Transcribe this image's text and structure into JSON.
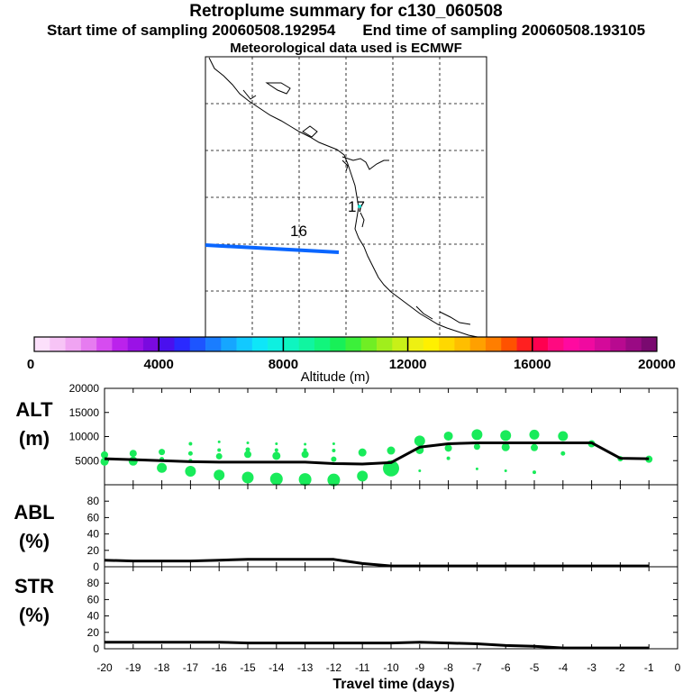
{
  "header": {
    "title": "Retroplume summary for c130_060508",
    "start_label": "Start time of sampling 20060508.192954",
    "end_label": "End time of sampling 20060508.193105",
    "met_label": "Meteorological data used is ECMWF"
  },
  "map": {
    "labels": [
      {
        "text": "16",
        "color": "#000000"
      },
      {
        "text": "17",
        "color": "#000000"
      }
    ],
    "track_color": "#0a66ff"
  },
  "colorbar": {
    "title": "Altitude (m)",
    "tick_labels": [
      "0",
      "4000",
      "8000",
      "12000",
      "16000",
      "20000"
    ],
    "colors": [
      "#fce0fb",
      "#f7c4f6",
      "#f0a4f2",
      "#e67cf0",
      "#d64cf0",
      "#bb22ec",
      "#9a12e6",
      "#7a0adf",
      "#4a10ee",
      "#2a2aff",
      "#1d55ff",
      "#1a7dff",
      "#16a6ff",
      "#12c9ff",
      "#0ee6f8",
      "#0ef0e0",
      "#0ef5c0",
      "#10f5a0",
      "#12f57c",
      "#18f058",
      "#3cf03a",
      "#70ee24",
      "#a0ee1c",
      "#c8f018",
      "#eef012",
      "#fff000",
      "#ffd800",
      "#ffbe00",
      "#ffa000",
      "#ff7e00",
      "#ff5200",
      "#ff2020",
      "#ff0050",
      "#ff0a80",
      "#ff0aa0",
      "#f00aa0",
      "#d40a9a",
      "#b80a90",
      "#9a0a84",
      "#7a0a70"
    ]
  },
  "chart_data": {
    "type": "line",
    "xlabel": "Travel time (days)",
    "x": [
      -20,
      -19,
      -18,
      -17,
      -16,
      -15,
      -14,
      -13,
      -12,
      -11,
      -10,
      -9,
      -8,
      -7,
      -6,
      -5,
      -4,
      -3,
      -2,
      -1
    ],
    "xlim": [
      -20,
      0
    ],
    "xticks": [
      -20,
      -19,
      -18,
      -17,
      -16,
      -15,
      -14,
      -13,
      -12,
      -11,
      -10,
      -9,
      -8,
      -7,
      -6,
      -5,
      -4,
      -3,
      -2,
      -1,
      0
    ],
    "panels": [
      {
        "key": "alt",
        "ylabel": "ALT\n(m)",
        "ylim": [
          0,
          20000
        ],
        "yticks": [
          5000,
          10000,
          15000,
          20000
        ],
        "line": [
          5400,
          5200,
          5000,
          4800,
          4700,
          4700,
          4700,
          4700,
          4400,
          4300,
          4600,
          7800,
          8500,
          8700,
          8700,
          8700,
          8700,
          8700,
          5500,
          5400
        ],
        "scatter_color": "#19eb5a",
        "scatter": [
          {
            "x": -20,
            "y": 6200,
            "s": 8
          },
          {
            "x": -20,
            "y": 4800,
            "s": 9
          },
          {
            "x": -19,
            "y": 6500,
            "s": 8
          },
          {
            "x": -19,
            "y": 4900,
            "s": 10
          },
          {
            "x": -18,
            "y": 6800,
            "s": 7
          },
          {
            "x": -18,
            "y": 5300,
            "s": 5
          },
          {
            "x": -18,
            "y": 3500,
            "s": 11
          },
          {
            "x": -17,
            "y": 8500,
            "s": 4
          },
          {
            "x": -17,
            "y": 6500,
            "s": 5
          },
          {
            "x": -17,
            "y": 5000,
            "s": 4
          },
          {
            "x": -17,
            "y": 2800,
            "s": 12
          },
          {
            "x": -16,
            "y": 8900,
            "s": 3
          },
          {
            "x": -16,
            "y": 7200,
            "s": 4
          },
          {
            "x": -16,
            "y": 5900,
            "s": 7
          },
          {
            "x": -16,
            "y": 2000,
            "s": 12
          },
          {
            "x": -15,
            "y": 8700,
            "s": 3
          },
          {
            "x": -15,
            "y": 7300,
            "s": 5
          },
          {
            "x": -15,
            "y": 6300,
            "s": 8
          },
          {
            "x": -15,
            "y": 1500,
            "s": 13
          },
          {
            "x": -14,
            "y": 8500,
            "s": 3
          },
          {
            "x": -14,
            "y": 7200,
            "s": 4
          },
          {
            "x": -14,
            "y": 6000,
            "s": 9
          },
          {
            "x": -14,
            "y": 1200,
            "s": 14
          },
          {
            "x": -13,
            "y": 8400,
            "s": 3
          },
          {
            "x": -13,
            "y": 7200,
            "s": 4
          },
          {
            "x": -13,
            "y": 6300,
            "s": 8
          },
          {
            "x": -13,
            "y": 1100,
            "s": 14
          },
          {
            "x": -12,
            "y": 8500,
            "s": 3
          },
          {
            "x": -12,
            "y": 7100,
            "s": 4
          },
          {
            "x": -12,
            "y": 5300,
            "s": 6
          },
          {
            "x": -12,
            "y": 1000,
            "s": 14
          },
          {
            "x": -11,
            "y": 6700,
            "s": 9
          },
          {
            "x": -11,
            "y": 1800,
            "s": 12
          },
          {
            "x": -10,
            "y": 7100,
            "s": 9
          },
          {
            "x": -10,
            "y": 3400,
            "s": 18
          },
          {
            "x": -9,
            "y": 9100,
            "s": 12
          },
          {
            "x": -9,
            "y": 7200,
            "s": 9
          },
          {
            "x": -9,
            "y": 2900,
            "s": 3
          },
          {
            "x": -8,
            "y": 10100,
            "s": 10
          },
          {
            "x": -8,
            "y": 7600,
            "s": 8
          },
          {
            "x": -8,
            "y": 5500,
            "s": 4
          },
          {
            "x": -7,
            "y": 10400,
            "s": 12
          },
          {
            "x": -7,
            "y": 7900,
            "s": 7
          },
          {
            "x": -7,
            "y": 3300,
            "s": 3
          },
          {
            "x": -6,
            "y": 10200,
            "s": 12
          },
          {
            "x": -6,
            "y": 7800,
            "s": 9
          },
          {
            "x": -6,
            "y": 2900,
            "s": 3
          },
          {
            "x": -5,
            "y": 10400,
            "s": 11
          },
          {
            "x": -5,
            "y": 7700,
            "s": 8
          },
          {
            "x": -5,
            "y": 2600,
            "s": 4
          },
          {
            "x": -4,
            "y": 10100,
            "s": 11
          },
          {
            "x": -4,
            "y": 6500,
            "s": 5
          },
          {
            "x": -3,
            "y": 8500,
            "s": 8
          },
          {
            "x": -2,
            "y": 5400,
            "s": 6
          },
          {
            "x": -1,
            "y": 5300,
            "s": 8
          }
        ]
      },
      {
        "key": "abl",
        "ylabel": "ABL\n(%)",
        "ylim": [
          0,
          100
        ],
        "yticks": [
          0,
          20,
          40,
          60,
          80
        ],
        "line": [
          8,
          7,
          7,
          7,
          8,
          9,
          9,
          9,
          9,
          4,
          1,
          1,
          1,
          1,
          1,
          1,
          1,
          1,
          1,
          1
        ]
      },
      {
        "key": "str",
        "ylabel": "STR\n(%)",
        "ylim": [
          0,
          100
        ],
        "yticks": [
          0,
          20,
          40,
          60,
          80
        ],
        "line": [
          8,
          8,
          8,
          8,
          8,
          7,
          7,
          7,
          7,
          7,
          7,
          8,
          7,
          6,
          4,
          3,
          1,
          1,
          1,
          1
        ]
      }
    ]
  }
}
